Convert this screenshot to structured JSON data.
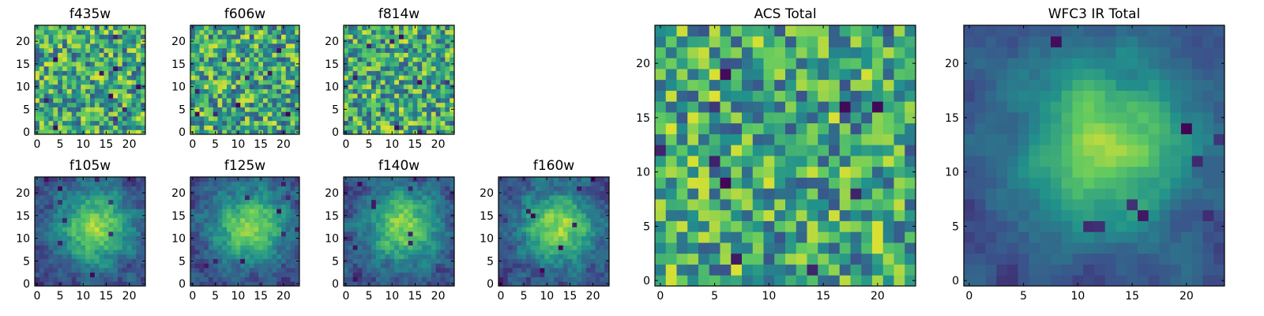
{
  "figure": {
    "colormap": [
      "#440154",
      "#3b528b",
      "#21918c",
      "#5ec962",
      "#fde725"
    ],
    "frame_color": "#000000"
  },
  "chart_data": [
    {
      "type": "heatmap",
      "title": "f435w",
      "grid_shape": [
        24,
        24
      ],
      "xlim": [
        0,
        23
      ],
      "ylim": [
        0,
        23
      ],
      "xticks": [
        "0",
        "5",
        "10",
        "15",
        "20"
      ],
      "yticks": [
        "0",
        "5",
        "10",
        "15",
        "20"
      ],
      "cell_seed": 3,
      "structure": "noise",
      "smooth": 0
    },
    {
      "type": "heatmap",
      "title": "f606w",
      "grid_shape": [
        24,
        24
      ],
      "xlim": [
        0,
        23
      ],
      "ylim": [
        0,
        23
      ],
      "xticks": [
        "0",
        "5",
        "10",
        "15",
        "20"
      ],
      "yticks": [
        "0",
        "5",
        "10",
        "15",
        "20"
      ],
      "cell_seed": 7,
      "structure": "noise",
      "smooth": 0
    },
    {
      "type": "heatmap",
      "title": "f814w",
      "grid_shape": [
        24,
        24
      ],
      "xlim": [
        0,
        23
      ],
      "ylim": [
        0,
        23
      ],
      "xticks": [
        "0",
        "5",
        "10",
        "15",
        "20"
      ],
      "yticks": [
        "0",
        "5",
        "10",
        "15",
        "20"
      ],
      "cell_seed": 11,
      "structure": "noise",
      "smooth": 0
    },
    {
      "type": "heatmap",
      "title": "f105w",
      "grid_shape": [
        24,
        24
      ],
      "xlim": [
        0,
        23
      ],
      "ylim": [
        0,
        23
      ],
      "xticks": [
        "0",
        "5",
        "10",
        "15",
        "20"
      ],
      "yticks": [
        "0",
        "5",
        "10",
        "15",
        "20"
      ],
      "cell_seed": 13,
      "structure": "central-source",
      "smooth": 1
    },
    {
      "type": "heatmap",
      "title": "f125w",
      "grid_shape": [
        24,
        24
      ],
      "xlim": [
        0,
        23
      ],
      "ylim": [
        0,
        23
      ],
      "xticks": [
        "0",
        "5",
        "10",
        "15",
        "20"
      ],
      "yticks": [
        "0",
        "5",
        "10",
        "15",
        "20"
      ],
      "cell_seed": 17,
      "structure": "central-source",
      "smooth": 1
    },
    {
      "type": "heatmap",
      "title": "f140w",
      "grid_shape": [
        24,
        24
      ],
      "xlim": [
        0,
        23
      ],
      "ylim": [
        0,
        23
      ],
      "xticks": [
        "0",
        "5",
        "10",
        "15",
        "20"
      ],
      "yticks": [
        "0",
        "5",
        "10",
        "15",
        "20"
      ],
      "cell_seed": 19,
      "structure": "central-source",
      "smooth": 1
    },
    {
      "type": "heatmap",
      "title": "f160w",
      "grid_shape": [
        24,
        24
      ],
      "xlim": [
        0,
        23
      ],
      "ylim": [
        0,
        23
      ],
      "xticks": [
        "0",
        "5",
        "10",
        "15",
        "20"
      ],
      "yticks": [
        "0",
        "5",
        "10",
        "15",
        "20"
      ],
      "cell_seed": 23,
      "structure": "central-source",
      "smooth": 1
    },
    {
      "type": "heatmap",
      "title": "ACS Total",
      "grid_shape": [
        24,
        24
      ],
      "xlim": [
        0,
        23
      ],
      "ylim": [
        0,
        23
      ],
      "xticks": [
        "0",
        "5",
        "10",
        "15",
        "20"
      ],
      "yticks": [
        "0",
        "5",
        "10",
        "15",
        "20"
      ],
      "cell_seed": 29,
      "structure": "noise",
      "smooth": 0
    },
    {
      "type": "heatmap",
      "title": "WFC3 IR Total",
      "grid_shape": [
        24,
        24
      ],
      "xlim": [
        0,
        23
      ],
      "ylim": [
        0,
        23
      ],
      "xticks": [
        "0",
        "5",
        "10",
        "15",
        "20"
      ],
      "yticks": [
        "0",
        "5",
        "10",
        "15",
        "20"
      ],
      "cell_seed": 31,
      "structure": "central-source",
      "smooth": 2
    }
  ]
}
